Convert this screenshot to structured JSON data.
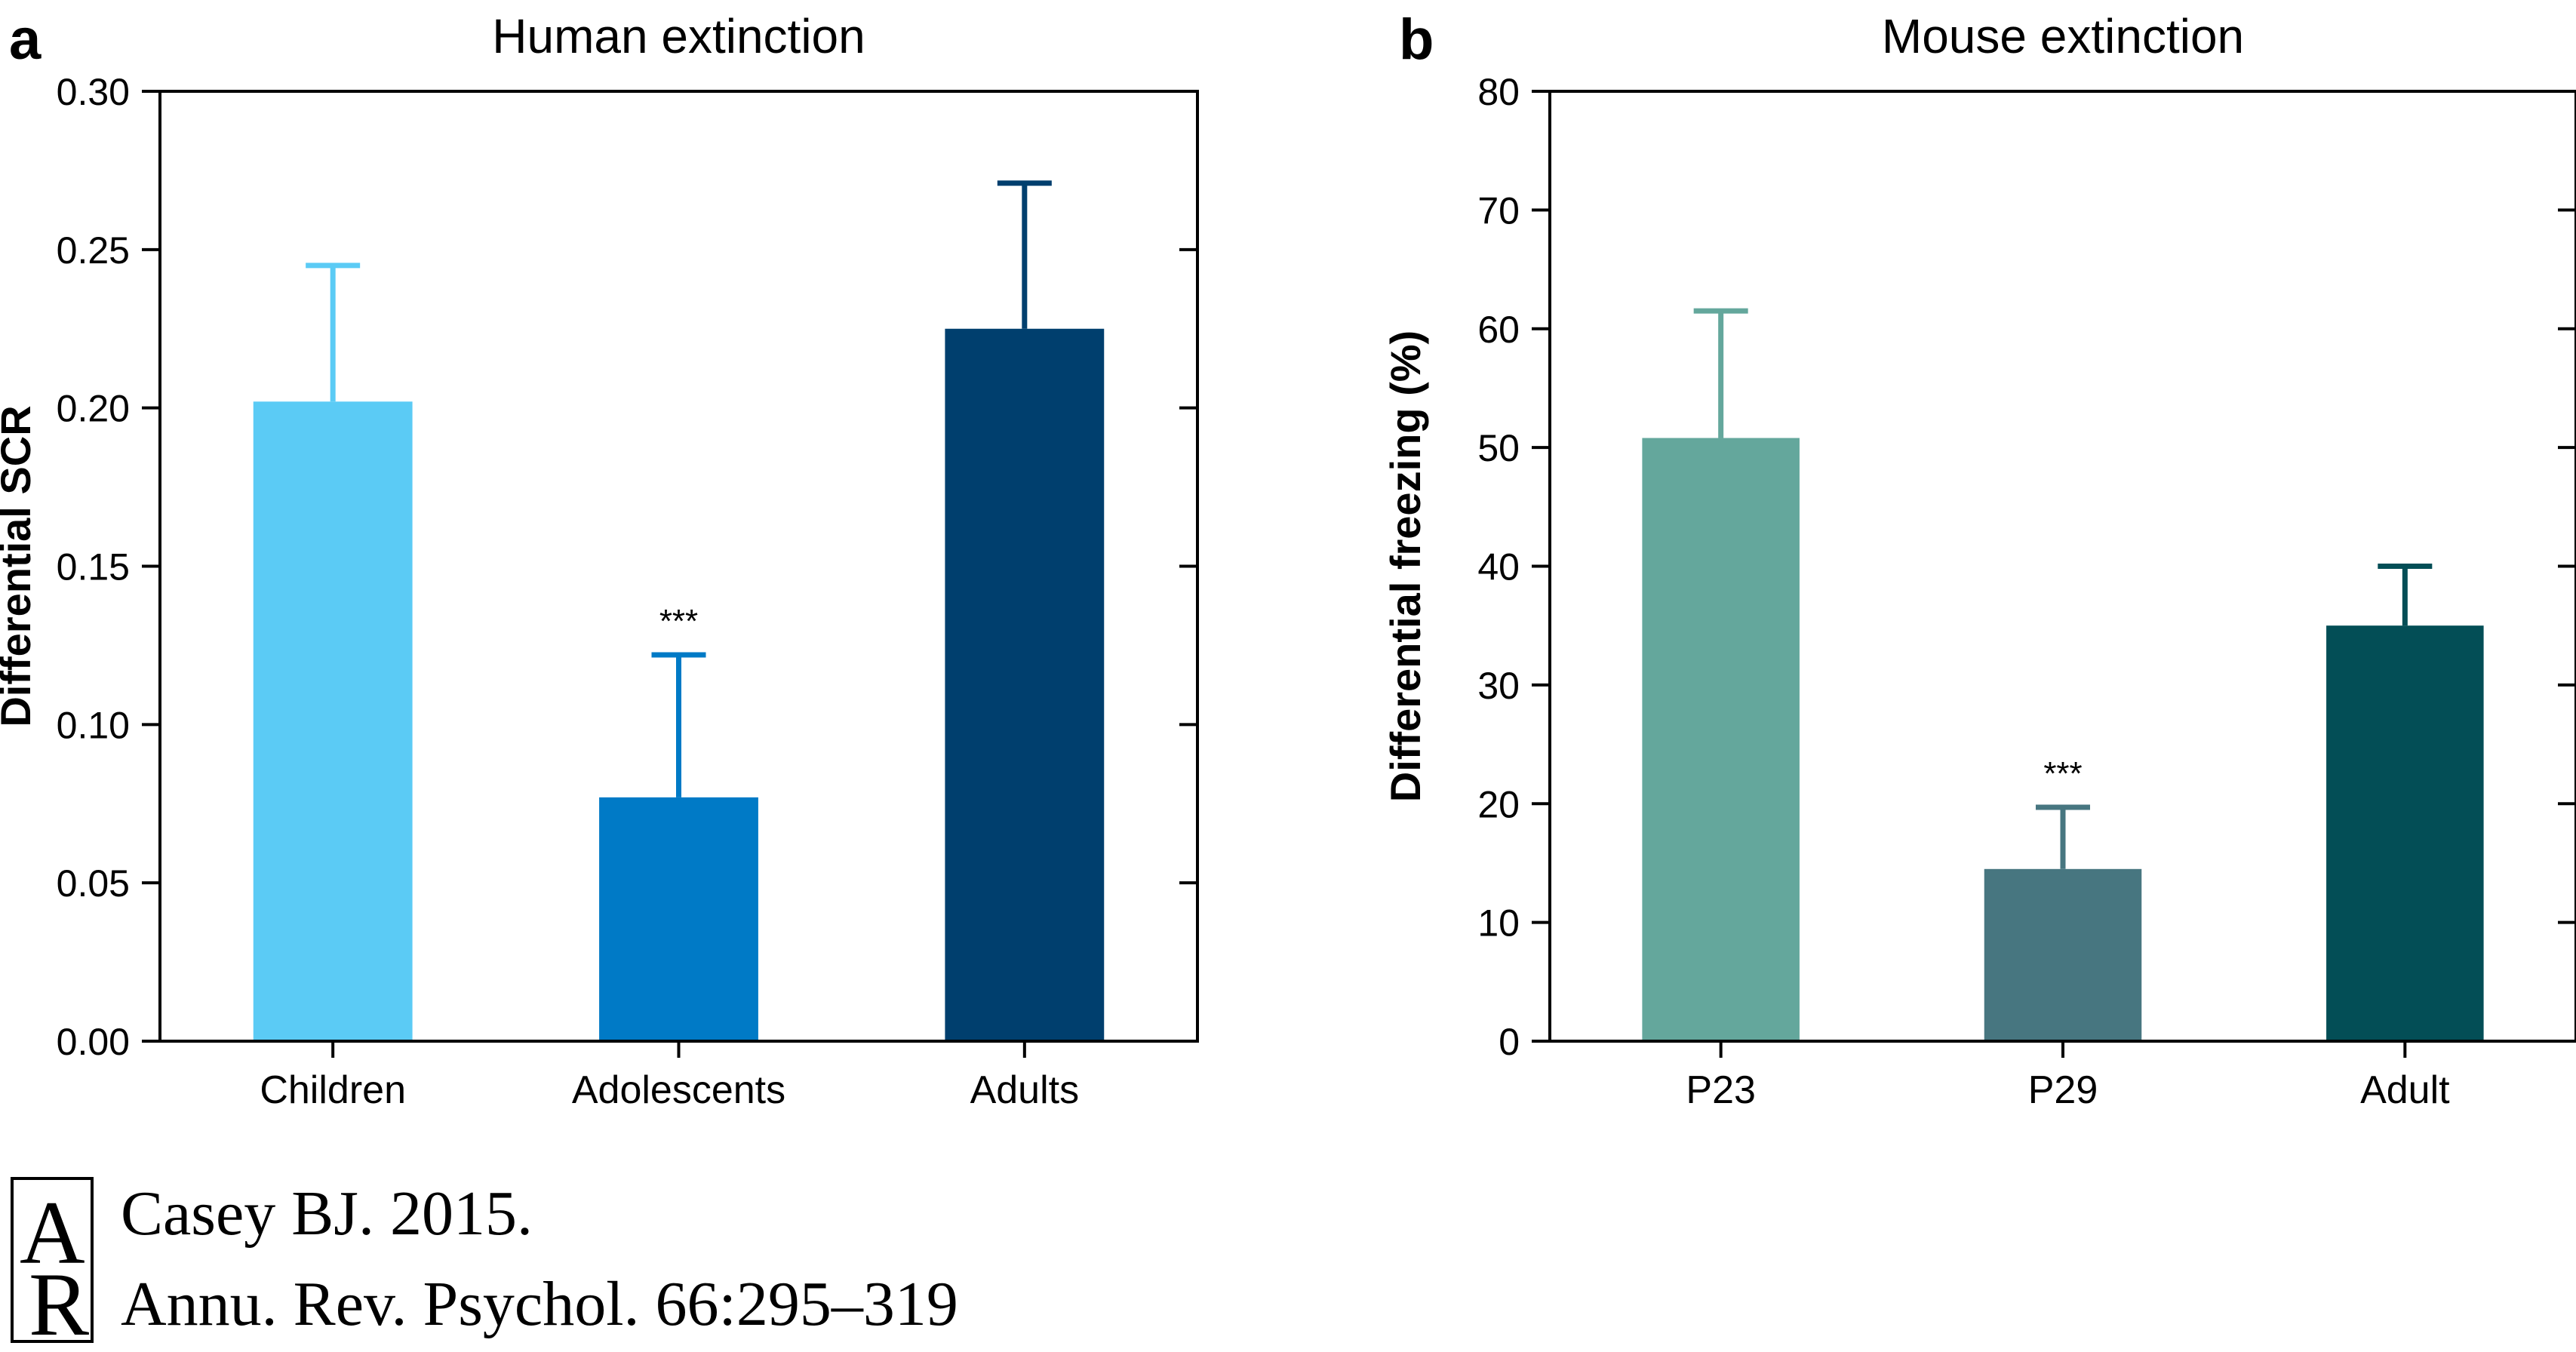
{
  "chart_data": [
    {
      "panel_label": "a",
      "type": "bar",
      "title": "Human extinction",
      "ylabel": "Differential SCR",
      "xlabel": "",
      "categories": [
        "Children",
        "Adolescents",
        "Adults"
      ],
      "values": [
        0.202,
        0.077,
        0.225
      ],
      "error_upper": [
        0.245,
        0.122,
        0.271
      ],
      "colors": [
        "#5bcbf5",
        "#007ac6",
        "#003f6e"
      ],
      "significance": [
        "",
        "***",
        ""
      ],
      "ylim": [
        0,
        0.3
      ],
      "yticks": [
        0,
        0.05,
        0.1,
        0.15,
        0.2,
        0.25,
        0.3
      ],
      "ytick_labels": [
        "0.00",
        "0.05",
        "0.10",
        "0.15",
        "0.20",
        "0.25",
        "0.30"
      ]
    },
    {
      "panel_label": "b",
      "type": "bar",
      "title": "Mouse extinction",
      "ylabel": "Differential freezing (%)",
      "xlabel": "",
      "categories": [
        "P23",
        "P29",
        "Adult"
      ],
      "values": [
        50.8,
        14.5,
        35
      ],
      "error_upper": [
        61.5,
        19.7,
        40
      ],
      "colors": [
        "#64a79c",
        "#477680",
        "#034e56"
      ],
      "significance": [
        "",
        "***",
        ""
      ],
      "ylim": [
        0,
        80
      ],
      "yticks": [
        0,
        10,
        20,
        30,
        40,
        50,
        60,
        70,
        80
      ],
      "ytick_labels": [
        "0",
        "10",
        "20",
        "30",
        "40",
        "50",
        "60",
        "70",
        "80"
      ]
    }
  ],
  "citation": {
    "logo_letters": "AR",
    "line1": "Casey BJ. 2015.",
    "line2": "Annu. Rev. Psychol. 66:295–319"
  }
}
